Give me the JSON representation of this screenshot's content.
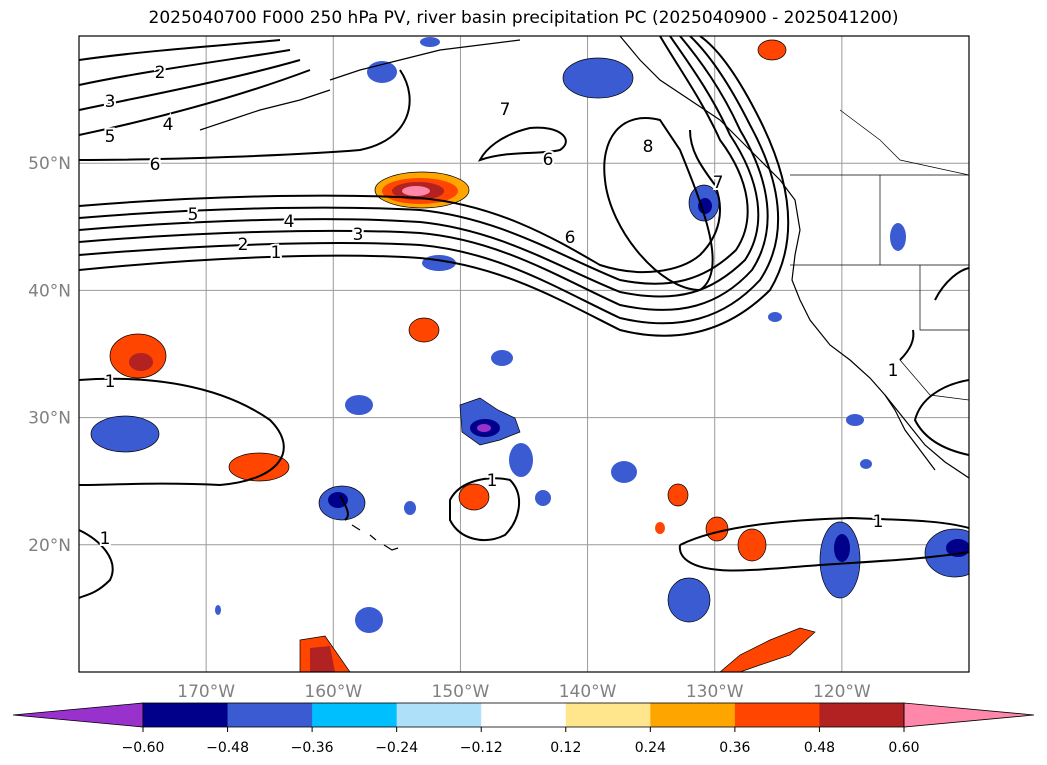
{
  "title": "2025040700 F000 250 hPa PV, river basin precipitation PC (2025040900 - 2025041200)",
  "map": {
    "lon_range": [
      -180,
      -110
    ],
    "lat_range": [
      10,
      60
    ],
    "lat_labels": [
      "50°N",
      "40°N",
      "30°N",
      "20°N"
    ],
    "lat_values": [
      50,
      40,
      30,
      20
    ],
    "lon_labels": [
      "170°W",
      "160°W",
      "150°W",
      "140°W",
      "130°W",
      "120°W"
    ],
    "lon_values": [
      -170,
      -160,
      -150,
      -140,
      -130,
      -120
    ],
    "grid": true,
    "pv_contour_labels": [
      "1",
      "2",
      "3",
      "4",
      "5",
      "6",
      "7",
      "8"
    ]
  },
  "colorbar": {
    "ticks": [
      "−0.60",
      "−0.48",
      "−0.36",
      "−0.24",
      "−0.12",
      "0.12",
      "0.24",
      "0.36",
      "0.48",
      "0.60"
    ],
    "colors": [
      "#9932cc",
      "#00008b",
      "#3a5bd1",
      "#00bfff",
      "#aee0fa",
      "#ffffff",
      "#ffe68c",
      "#ffa500",
      "#ff4500",
      "#b22222",
      "#ff88aa"
    ]
  }
}
